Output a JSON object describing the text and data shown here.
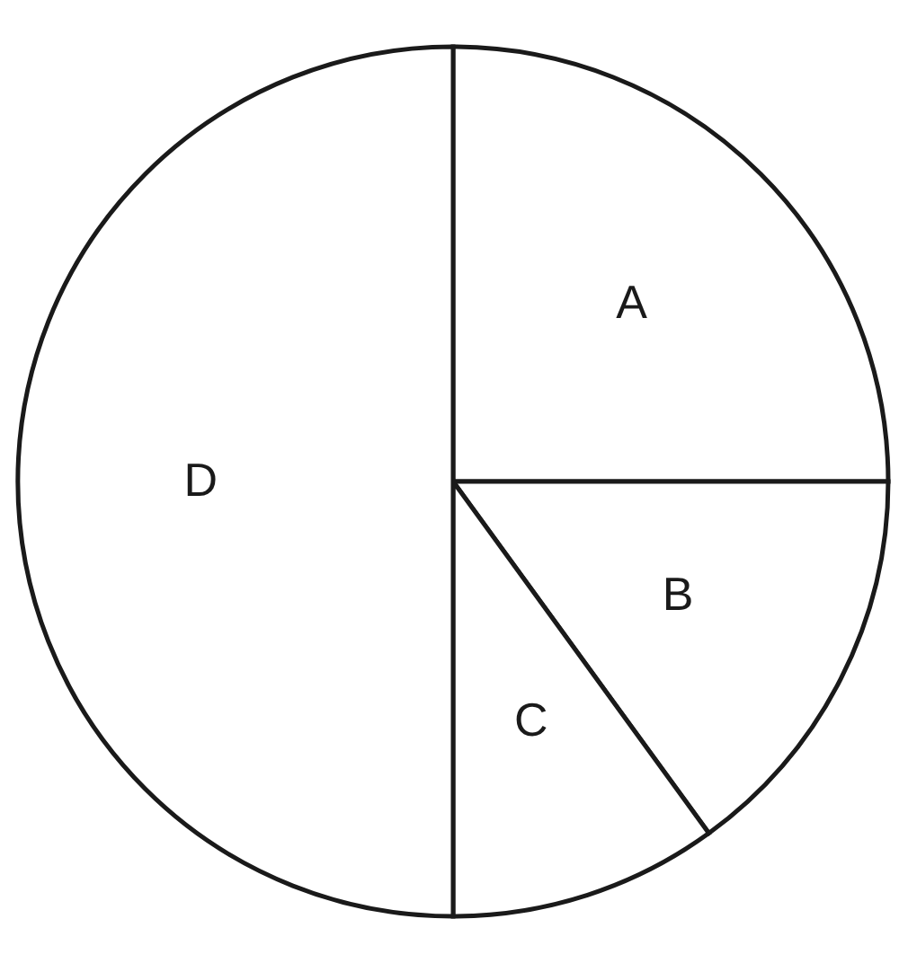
{
  "chart_data": {
    "type": "pie",
    "categories": [
      "A",
      "B",
      "C",
      "D"
    ],
    "values": [
      25,
      15,
      10,
      50
    ],
    "colors": [
      "#ffffff",
      "#ffffff",
      "#ffffff",
      "#ffffff"
    ]
  }
}
